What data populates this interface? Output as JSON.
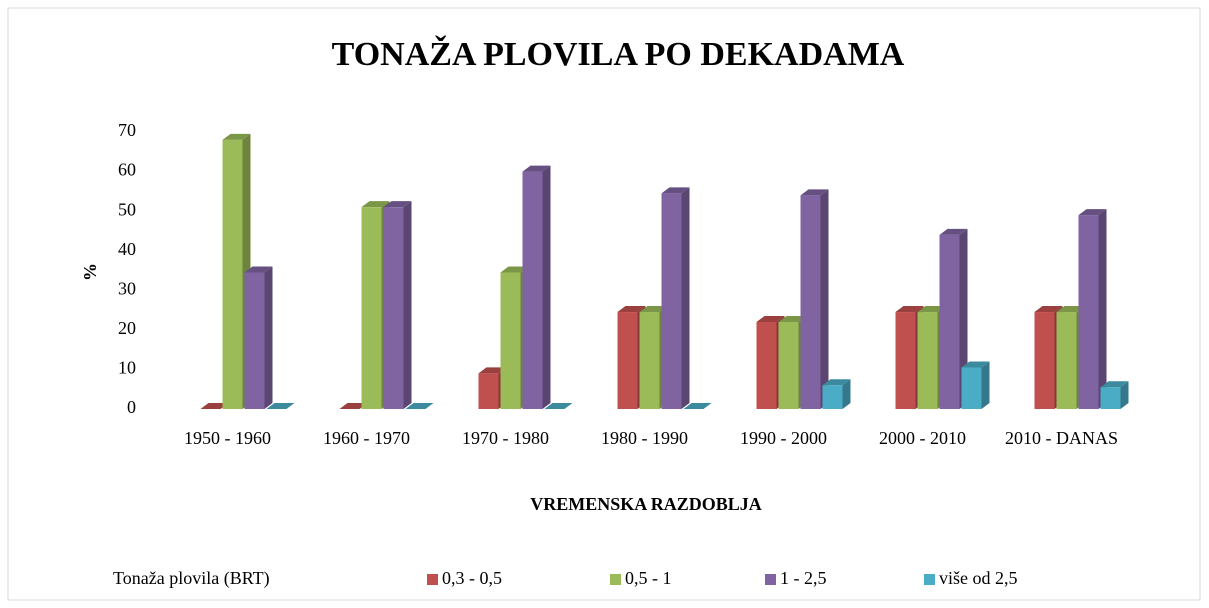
{
  "chart_data": {
    "type": "bar3d",
    "title": "TONAŽA PLOVILA PO DEKADAMA",
    "y_label": "%",
    "x_label": "VREMENSKA RAZDOBLJA",
    "legend_title": "Tonaža plovila (BRT)",
    "categories": [
      "1950 - 1960",
      "1960 - 1970",
      "1970 - 1980",
      "1980 - 1990",
      "1990 - 2000",
      "2000 - 2010",
      "2010 - DANAS"
    ],
    "series": [
      {
        "name": "0,3 - 0,5",
        "color": "#c0504d",
        "values": [
          0,
          0,
          9,
          24.5,
          22,
          24.5,
          24.5
        ]
      },
      {
        "name": "0,5 - 1",
        "color": "#9bbb59",
        "values": [
          68,
          51,
          34.5,
          24.5,
          22,
          24.5,
          24.5
        ]
      },
      {
        "name": "1 - 2,5",
        "color": "#8064a2",
        "values": [
          34.5,
          51,
          60,
          54.5,
          54,
          44,
          49
        ]
      },
      {
        "name": "više od 2,5",
        "color": "#4bacc6",
        "values": [
          0,
          0,
          0,
          0,
          6,
          10.5,
          5.5
        ]
      }
    ],
    "ylim": [
      0,
      70
    ],
    "yticks": [
      0,
      10,
      20,
      30,
      40,
      50,
      60,
      70
    ],
    "grid": false,
    "legend": "bottom"
  }
}
